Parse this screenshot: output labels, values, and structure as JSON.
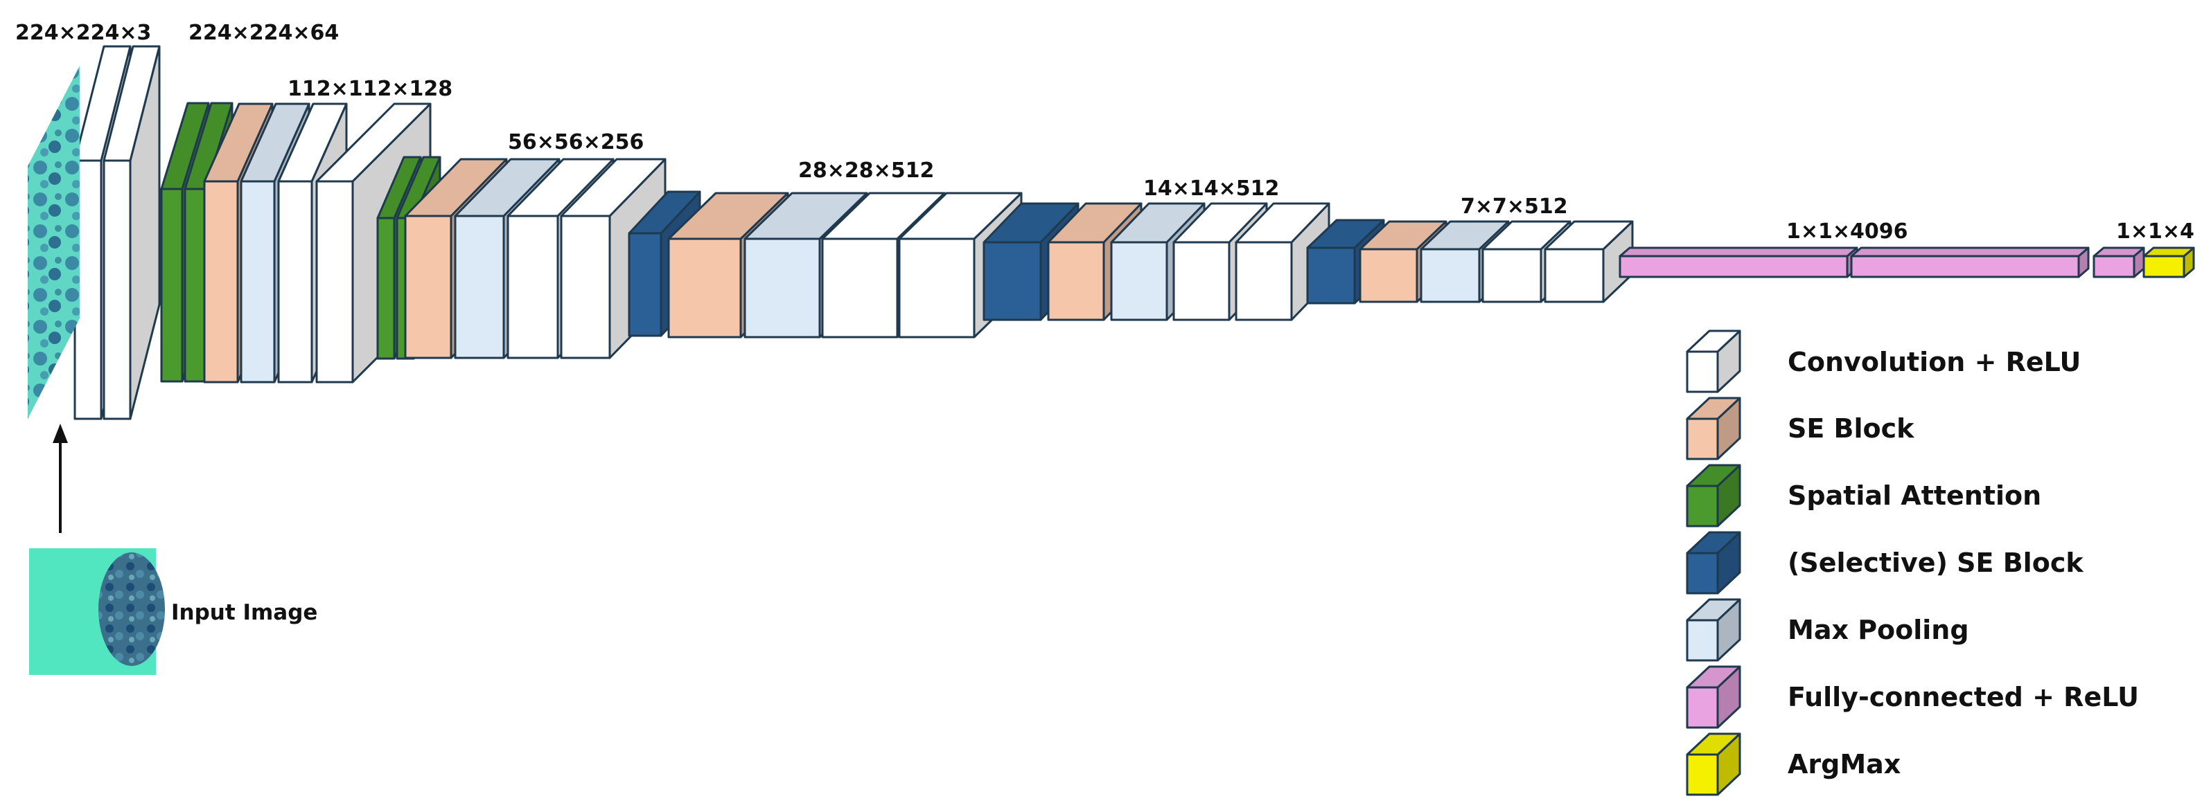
{
  "colors": {
    "conv": "#ffffff",
    "se": "#f5c6aa",
    "spatial": "#4a9a2e",
    "selective_se": "#2a6096",
    "pool": "#dce9f6",
    "fc": "#e8a3e0",
    "argmax": "#f4f000",
    "image_bg": "#52e6c0",
    "stroke": "#1f3a4f"
  },
  "dimension_labels": [
    "224×224×3",
    "224×224×64",
    "112×112×128",
    "56×56×256",
    "28×28×512",
    "14×14×512",
    "7×7×512",
    "1×1×4096",
    "1×1×4"
  ],
  "input_label": "Input Image",
  "legend": [
    {
      "label": "Convolution + ReLU",
      "type": "conv"
    },
    {
      "label": "SE Block",
      "type": "se"
    },
    {
      "label": "Spatial Attention",
      "type": "spatial"
    },
    {
      "label": "(Selective) SE Block",
      "type": "selective_se"
    },
    {
      "label": "Max Pooling",
      "type": "pool"
    },
    {
      "label": "Fully-connected + ReLU",
      "type": "fc"
    },
    {
      "label": "ArgMax",
      "type": "argmax"
    }
  ],
  "stages": [
    {
      "name": "stage-1",
      "blocks": [
        "conv",
        "conv",
        "spatial",
        "spatial",
        "se",
        "pool"
      ]
    },
    {
      "name": "stage-2",
      "blocks": [
        "conv",
        "conv",
        "spatial",
        "spatial",
        "se",
        "pool"
      ]
    },
    {
      "name": "stage-3",
      "blocks": [
        "conv",
        "conv",
        "conv",
        "selective_se",
        "se",
        "pool"
      ]
    },
    {
      "name": "stage-4",
      "blocks": [
        "conv",
        "conv",
        "conv",
        "selective_se",
        "se",
        "pool"
      ]
    },
    {
      "name": "stage-5",
      "blocks": [
        "conv",
        "conv",
        "conv",
        "selective_se",
        "se",
        "pool"
      ]
    },
    {
      "name": "classifier",
      "blocks": [
        "fc",
        "fc",
        "fc",
        "argmax"
      ]
    }
  ]
}
